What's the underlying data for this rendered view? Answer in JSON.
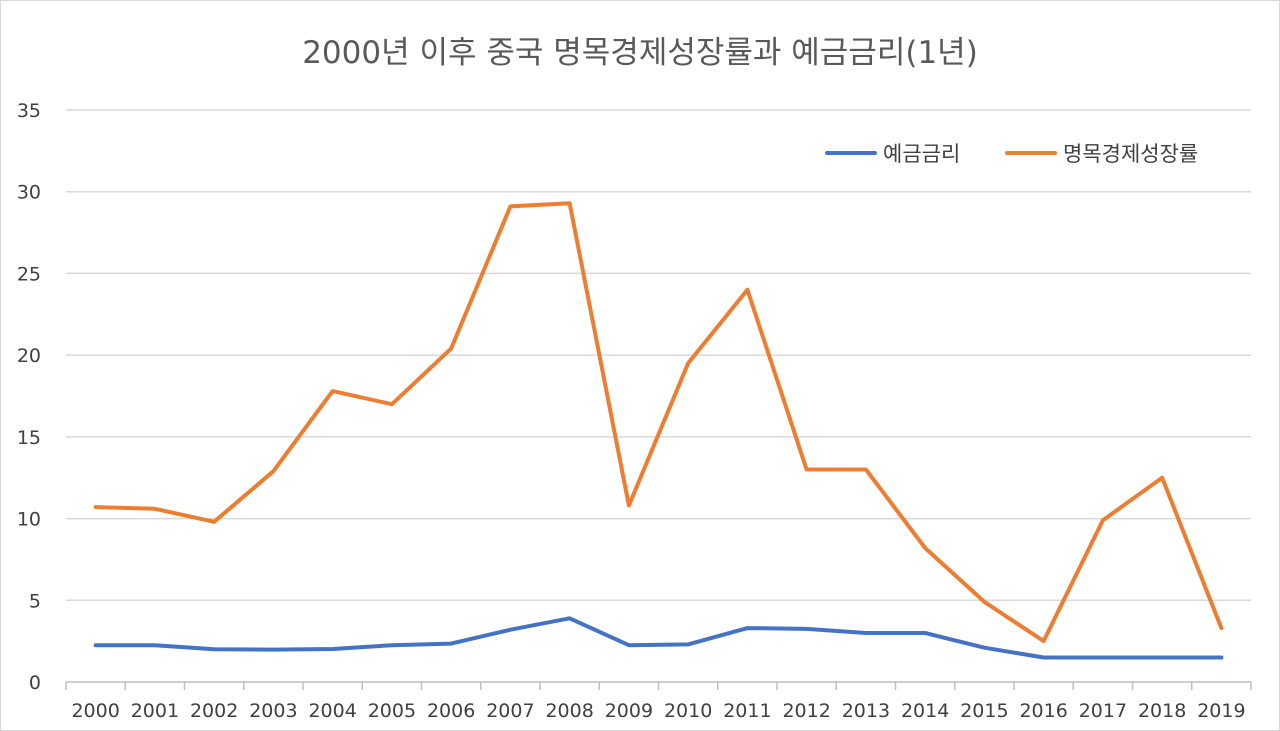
{
  "chart_data": {
    "type": "line",
    "title": "2000년 이후 중국 명목경제성장률과 예금금리(1년)",
    "xlabel": "",
    "ylabel": "",
    "ylim": [
      0,
      35
    ],
    "yticks": [
      0,
      5,
      10,
      15,
      20,
      25,
      30,
      35
    ],
    "grid": true,
    "legend_position": "top-right",
    "categories": [
      "2000",
      "2001",
      "2002",
      "2003",
      "2004",
      "2005",
      "2006",
      "2007",
      "2008",
      "2009",
      "2010",
      "2011",
      "2012",
      "2013",
      "2014",
      "2015",
      "2016",
      "2017",
      "2018",
      "2019"
    ],
    "series": [
      {
        "name": "예금금리",
        "color": "#4472c4",
        "values": [
          2.25,
          2.25,
          2.0,
          1.98,
          2.02,
          2.25,
          2.35,
          3.2,
          3.9,
          2.25,
          2.3,
          3.3,
          3.25,
          3.0,
          3.0,
          2.1,
          1.5,
          1.5,
          1.5,
          1.5
        ]
      },
      {
        "name": "명목경제성장률",
        "color": "#ed7d31",
        "values": [
          10.7,
          10.6,
          9.8,
          12.9,
          17.8,
          17.0,
          20.4,
          29.1,
          29.3,
          10.8,
          19.5,
          24.0,
          13.0,
          13.0,
          8.2,
          4.9,
          2.5,
          9.9,
          12.5,
          3.3
        ]
      }
    ]
  }
}
